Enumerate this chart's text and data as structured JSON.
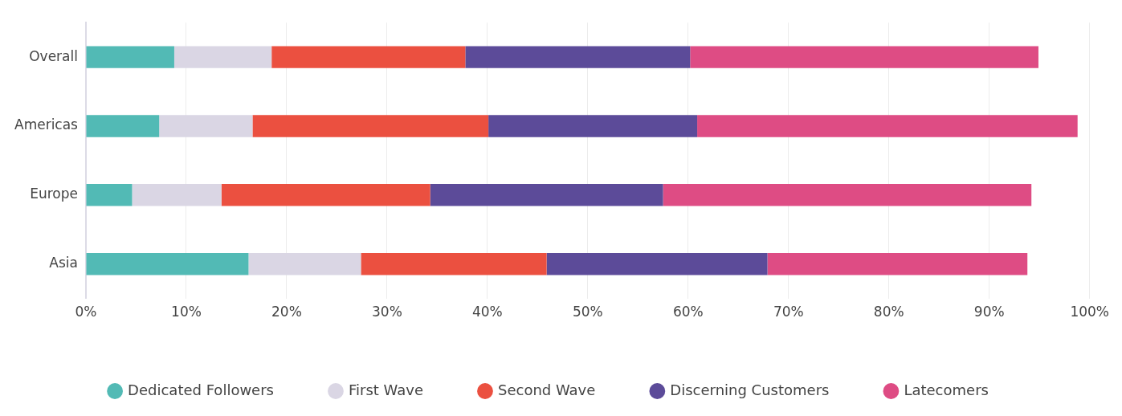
{
  "chart_data": {
    "type": "bar",
    "orientation": "horizontal",
    "stacked": true,
    "categories": [
      "Overall",
      "Americas",
      "Europe",
      "Asia"
    ],
    "series": [
      {
        "name": "Dedicated Followers",
        "color": "#52bab5",
        "values": [
          8.8,
          7.3,
          4.6,
          16.2
        ]
      },
      {
        "name": "First Wave",
        "color": "#dad6e4",
        "values": [
          9.7,
          9.3,
          8.9,
          11.2
        ]
      },
      {
        "name": "Second Wave",
        "color": "#eb5040",
        "values": [
          19.3,
          23.5,
          20.8,
          18.5
        ]
      },
      {
        "name": "Discerning Customers",
        "color": "#5c4b99",
        "values": [
          22.4,
          20.8,
          23.2,
          22.0
        ]
      },
      {
        "name": "Latecomers",
        "color": "#de4c84",
        "values": [
          34.7,
          37.9,
          36.7,
          25.9
        ]
      }
    ],
    "xlim": [
      0,
      100
    ],
    "xticks": [
      {
        "value": 0,
        "label": "0%"
      },
      {
        "value": 10,
        "label": "10%"
      },
      {
        "value": 20,
        "label": "20%"
      },
      {
        "value": 30,
        "label": "30%"
      },
      {
        "value": 40,
        "label": "40%"
      },
      {
        "value": 50,
        "label": "50%"
      },
      {
        "value": 60,
        "label": "60%"
      },
      {
        "value": 70,
        "label": "70%"
      },
      {
        "value": 80,
        "label": "80%"
      },
      {
        "value": 90,
        "label": "90%"
      },
      {
        "value": 100,
        "label": "100%"
      }
    ],
    "grid": "x",
    "legend": "bottom",
    "marker": "circle"
  }
}
